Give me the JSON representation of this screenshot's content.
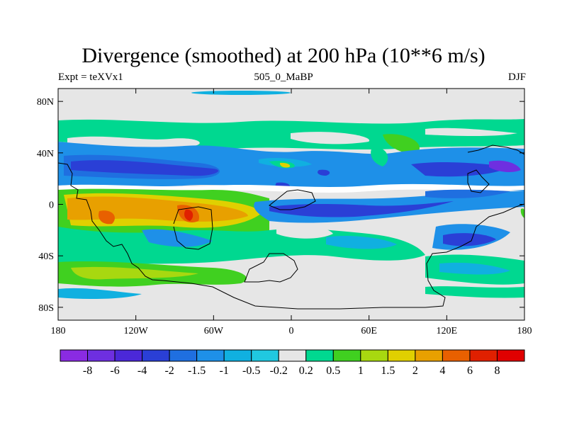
{
  "title": "Divergence (smoothed) at 200 hPa (10**6 m/s)",
  "left_string": "Expt = teXVx1",
  "center_string": "505_0_MaBP",
  "right_string": "DJF",
  "chart_data": {
    "type": "heatmap",
    "title": "Divergence (smoothed) at 200 hPa (10**6 m/s)",
    "variable": "Divergence (smoothed)",
    "level": "200 hPa",
    "units": "10**6 m/s",
    "season": "DJF",
    "experiment": "teXVx1",
    "xlim": [
      -180,
      180
    ],
    "ylim": [
      -90,
      90
    ],
    "x_ticks": [
      {
        "value": -180,
        "label": "180"
      },
      {
        "value": -120,
        "label": "120W"
      },
      {
        "value": -60,
        "label": "60W"
      },
      {
        "value": 0,
        "label": "0"
      },
      {
        "value": 60,
        "label": "60E"
      },
      {
        "value": 120,
        "label": "120E"
      },
      {
        "value": 180,
        "label": "180"
      }
    ],
    "y_ticks": [
      {
        "value": 80,
        "label": "80N"
      },
      {
        "value": 40,
        "label": "40N"
      },
      {
        "value": 0,
        "label": "0"
      },
      {
        "value": -40,
        "label": "40S"
      },
      {
        "value": -80,
        "label": "80S"
      }
    ],
    "colorbar": {
      "levels": [
        "-8",
        "-6",
        "-4",
        "-2",
        "-1.5",
        "-1",
        "-0.5",
        "-0.2",
        "0.2",
        "0.5",
        "1",
        "1.5",
        "2",
        "4",
        "6",
        "8"
      ],
      "colors": [
        "#8a2be2",
        "#6e2fe0",
        "#4b28d8",
        "#2a3fd6",
        "#1f6fe0",
        "#1e90e8",
        "#10b0e0",
        "#20c8e0",
        "#e6e6e6",
        "#00d890",
        "#40d020",
        "#a8d810",
        "#e0d000",
        "#e8a000",
        "#e86000",
        "#e02000",
        "#e00000"
      ]
    },
    "regions": [
      {
        "type": "convergence",
        "approx_lon": [
          -160,
          -60
        ],
        "approx_lat": [
          10,
          30
        ],
        "category": "-4"
      },
      {
        "type": "divergence",
        "approx_lon": [
          -150,
          -90
        ],
        "approx_lat": [
          -20,
          5
        ],
        "category": "4"
      },
      {
        "type": "divergence",
        "approx_lon": [
          -95,
          -75
        ],
        "approx_lat": [
          -15,
          -5
        ],
        "category": "8"
      },
      {
        "type": "divergence",
        "approx_lon": [
          -75,
          -25
        ],
        "approx_lat": [
          -15,
          -2
        ],
        "category": "4"
      },
      {
        "type": "convergence",
        "approx_lon": [
          0,
          100
        ],
        "approx_lat": [
          -12,
          2
        ],
        "category": "-4"
      },
      {
        "type": "convergence",
        "approx_lon": [
          110,
          170
        ],
        "approx_lat": [
          5,
          30
        ],
        "category": "-4"
      },
      {
        "type": "convergence",
        "approx_lon": [
          120,
          150
        ],
        "approx_lat": [
          -45,
          -30
        ],
        "category": "-4"
      },
      {
        "type": "divergence",
        "approx_lon": [
          -180,
          180
        ],
        "approx_lat": [
          55,
          62
        ],
        "category": "0.5"
      }
    ]
  }
}
